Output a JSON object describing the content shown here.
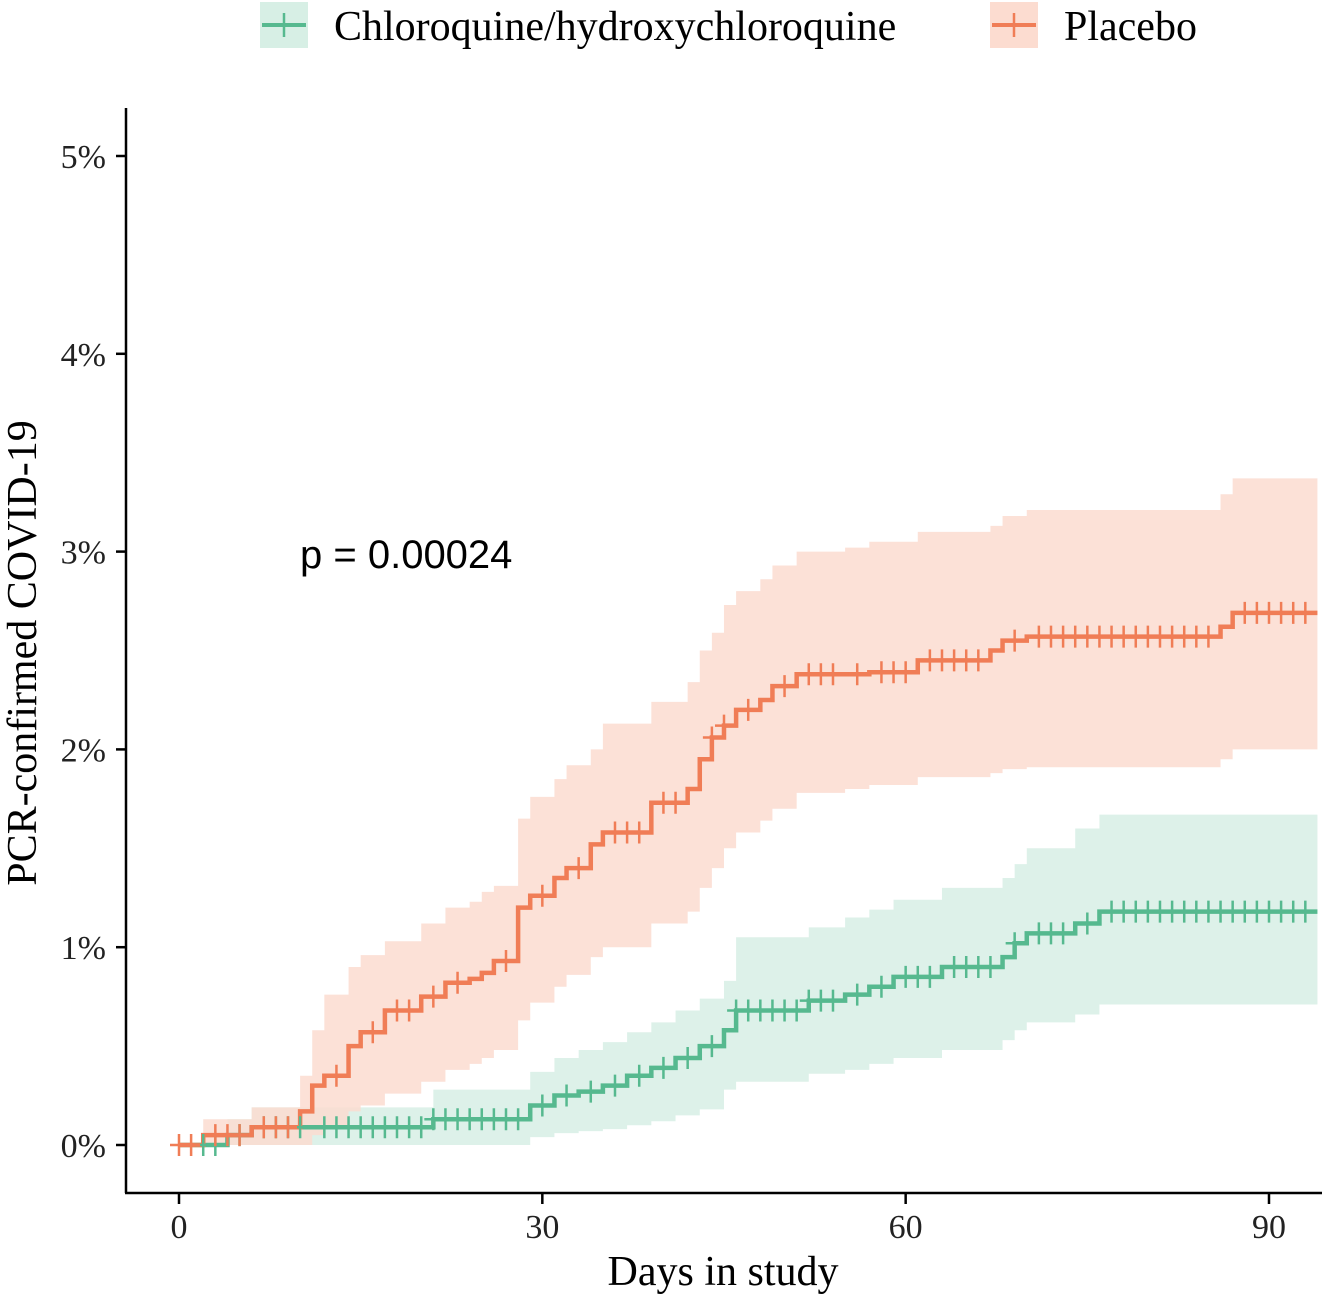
{
  "chart_data": {
    "type": "line",
    "subtype": "kaplan-meier cumulative incidence step plot with confidence bands and censor marks",
    "xlabel": "Days in study",
    "ylabel": "PCR-confirmed COVID-19",
    "annotation": "p = 0.00024",
    "xlim": [
      -7,
      94
    ],
    "ylim": [
      -0.25,
      5.25
    ],
    "x_ticks": [
      0,
      30,
      60,
      90
    ],
    "x_tick_labels": [
      "0",
      "30",
      "60",
      "90"
    ],
    "y_ticks": [
      0,
      1,
      2,
      3,
      4,
      5
    ],
    "y_tick_labels": [
      "0%",
      "1%",
      "2%",
      "3%",
      "4%",
      "5%"
    ],
    "grid": false,
    "legend_position": "top",
    "series": [
      {
        "name": "Chloroquine/hydroxychloroquine",
        "color": "#56B98F",
        "band_color": "#d7efe5",
        "steps": [
          [
            0,
            0
          ],
          [
            4,
            0.05
          ],
          [
            6,
            0.09
          ],
          [
            21,
            0.13
          ],
          [
            29,
            0.2
          ],
          [
            31,
            0.25
          ],
          [
            33,
            0.27
          ],
          [
            35,
            0.3
          ],
          [
            37,
            0.35
          ],
          [
            39,
            0.39
          ],
          [
            41,
            0.44
          ],
          [
            43,
            0.5
          ],
          [
            45,
            0.58
          ],
          [
            46,
            0.68
          ],
          [
            52,
            0.73
          ],
          [
            55,
            0.76
          ],
          [
            57,
            0.8
          ],
          [
            59,
            0.85
          ],
          [
            63,
            0.9
          ],
          [
            68,
            0.95
          ],
          [
            69,
            1.02
          ],
          [
            70,
            1.07
          ],
          [
            74,
            1.12
          ],
          [
            76,
            1.18
          ],
          [
            94,
            1.18
          ]
        ],
        "lower": [
          [
            0,
            0
          ],
          [
            4,
            0
          ],
          [
            6,
            0
          ],
          [
            21,
            0
          ],
          [
            29,
            0.04
          ],
          [
            31,
            0.06
          ],
          [
            33,
            0.07
          ],
          [
            35,
            0.08
          ],
          [
            37,
            0.1
          ],
          [
            39,
            0.12
          ],
          [
            41,
            0.15
          ],
          [
            43,
            0.18
          ],
          [
            45,
            0.28
          ],
          [
            46,
            0.32
          ],
          [
            52,
            0.36
          ],
          [
            55,
            0.38
          ],
          [
            57,
            0.41
          ],
          [
            59,
            0.44
          ],
          [
            63,
            0.48
          ],
          [
            68,
            0.53
          ],
          [
            69,
            0.58
          ],
          [
            70,
            0.62
          ],
          [
            74,
            0.66
          ],
          [
            76,
            0.71
          ],
          [
            94,
            0.71
          ]
        ],
        "upper": [
          [
            0,
            0
          ],
          [
            4,
            0.13
          ],
          [
            6,
            0.19
          ],
          [
            21,
            0.28
          ],
          [
            29,
            0.37
          ],
          [
            31,
            0.44
          ],
          [
            33,
            0.48
          ],
          [
            35,
            0.52
          ],
          [
            37,
            0.57
          ],
          [
            39,
            0.62
          ],
          [
            41,
            0.68
          ],
          [
            43,
            0.74
          ],
          [
            45,
            0.83
          ],
          [
            46,
            1.05
          ],
          [
            52,
            1.1
          ],
          [
            55,
            1.15
          ],
          [
            57,
            1.19
          ],
          [
            59,
            1.24
          ],
          [
            63,
            1.3
          ],
          [
            68,
            1.35
          ],
          [
            69,
            1.42
          ],
          [
            70,
            1.5
          ],
          [
            74,
            1.6
          ],
          [
            76,
            1.67
          ],
          [
            94,
            1.67
          ]
        ],
        "censor_x": [
          2,
          3,
          5,
          7,
          8,
          9,
          10,
          12,
          13,
          14,
          15,
          16,
          17,
          18,
          19,
          20,
          21,
          22,
          23,
          24,
          25,
          26,
          27,
          28,
          30,
          32,
          34,
          36,
          38,
          40,
          42,
          44,
          46,
          47,
          48,
          49,
          50,
          51,
          52,
          53,
          54,
          56,
          58,
          60,
          61,
          62,
          64,
          65,
          66,
          67,
          69,
          71,
          72,
          73,
          75,
          77,
          78,
          79,
          80,
          81,
          82,
          83,
          84,
          85,
          86,
          87,
          88,
          89,
          90,
          91,
          92,
          93
        ]
      },
      {
        "name": "Placebo",
        "color": "#F07D56",
        "band_color": "#fcdcd0",
        "steps": [
          [
            0,
            0
          ],
          [
            2,
            0.05
          ],
          [
            6,
            0.09
          ],
          [
            10,
            0.17
          ],
          [
            11,
            0.3
          ],
          [
            12,
            0.35
          ],
          [
            14,
            0.5
          ],
          [
            15,
            0.57
          ],
          [
            17,
            0.68
          ],
          [
            20,
            0.75
          ],
          [
            22,
            0.82
          ],
          [
            24,
            0.84
          ],
          [
            25,
            0.87
          ],
          [
            26,
            0.93
          ],
          [
            28,
            1.2
          ],
          [
            29,
            1.26
          ],
          [
            31,
            1.35
          ],
          [
            32,
            1.4
          ],
          [
            34,
            1.52
          ],
          [
            35,
            1.58
          ],
          [
            39,
            1.73
          ],
          [
            42,
            1.8
          ],
          [
            43,
            1.95
          ],
          [
            44,
            2.06
          ],
          [
            45,
            2.12
          ],
          [
            46,
            2.2
          ],
          [
            48,
            2.25
          ],
          [
            49,
            2.32
          ],
          [
            51,
            2.38
          ],
          [
            55,
            2.38
          ],
          [
            57,
            2.39
          ],
          [
            61,
            2.45
          ],
          [
            67,
            2.5
          ],
          [
            68,
            2.55
          ],
          [
            70,
            2.57
          ],
          [
            86,
            2.62
          ],
          [
            87,
            2.69
          ],
          [
            94,
            2.69
          ]
        ],
        "lower": [
          [
            0,
            0
          ],
          [
            2,
            0
          ],
          [
            6,
            0
          ],
          [
            10,
            0
          ],
          [
            11,
            0.05
          ],
          [
            12,
            0.1
          ],
          [
            14,
            0.17
          ],
          [
            15,
            0.2
          ],
          [
            17,
            0.26
          ],
          [
            20,
            0.32
          ],
          [
            22,
            0.38
          ],
          [
            24,
            0.41
          ],
          [
            25,
            0.44
          ],
          [
            26,
            0.48
          ],
          [
            28,
            0.63
          ],
          [
            29,
            0.72
          ],
          [
            31,
            0.8
          ],
          [
            32,
            0.86
          ],
          [
            34,
            0.95
          ],
          [
            35,
            1.0
          ],
          [
            39,
            1.12
          ],
          [
            42,
            1.18
          ],
          [
            43,
            1.3
          ],
          [
            44,
            1.4
          ],
          [
            45,
            1.5
          ],
          [
            46,
            1.58
          ],
          [
            48,
            1.64
          ],
          [
            49,
            1.7
          ],
          [
            51,
            1.78
          ],
          [
            55,
            1.8
          ],
          [
            57,
            1.82
          ],
          [
            61,
            1.86
          ],
          [
            67,
            1.88
          ],
          [
            68,
            1.9
          ],
          [
            70,
            1.91
          ],
          [
            86,
            1.95
          ],
          [
            87,
            2.0
          ],
          [
            94,
            2.0
          ]
        ],
        "upper": [
          [
            0,
            0
          ],
          [
            2,
            0.13
          ],
          [
            6,
            0.19
          ],
          [
            10,
            0.35
          ],
          [
            11,
            0.58
          ],
          [
            12,
            0.76
          ],
          [
            14,
            0.9
          ],
          [
            15,
            0.96
          ],
          [
            17,
            1.03
          ],
          [
            20,
            1.12
          ],
          [
            22,
            1.2
          ],
          [
            24,
            1.23
          ],
          [
            25,
            1.28
          ],
          [
            26,
            1.31
          ],
          [
            28,
            1.65
          ],
          [
            29,
            1.76
          ],
          [
            31,
            1.85
          ],
          [
            32,
            1.92
          ],
          [
            34,
            2.0
          ],
          [
            35,
            2.13
          ],
          [
            39,
            2.24
          ],
          [
            42,
            2.34
          ],
          [
            43,
            2.5
          ],
          [
            44,
            2.59
          ],
          [
            45,
            2.73
          ],
          [
            46,
            2.8
          ],
          [
            48,
            2.86
          ],
          [
            49,
            2.93
          ],
          [
            51,
            3.0
          ],
          [
            55,
            3.02
          ],
          [
            57,
            3.05
          ],
          [
            61,
            3.1
          ],
          [
            67,
            3.13
          ],
          [
            68,
            3.18
          ],
          [
            70,
            3.21
          ],
          [
            86,
            3.29
          ],
          [
            87,
            3.37
          ],
          [
            94,
            3.37
          ]
        ],
        "censor_x": [
          0,
          1,
          3,
          4,
          5,
          7,
          8,
          9,
          13,
          16,
          18,
          19,
          21,
          23,
          27,
          30,
          33,
          36,
          37,
          38,
          40,
          41,
          44,
          45,
          47,
          50,
          52,
          53,
          54,
          56,
          58,
          59,
          60,
          62,
          63,
          64,
          65,
          66,
          69,
          71,
          72,
          73,
          74,
          75,
          76,
          77,
          78,
          79,
          80,
          81,
          82,
          83,
          84,
          85,
          88,
          89,
          90,
          91,
          92,
          93
        ]
      }
    ]
  }
}
